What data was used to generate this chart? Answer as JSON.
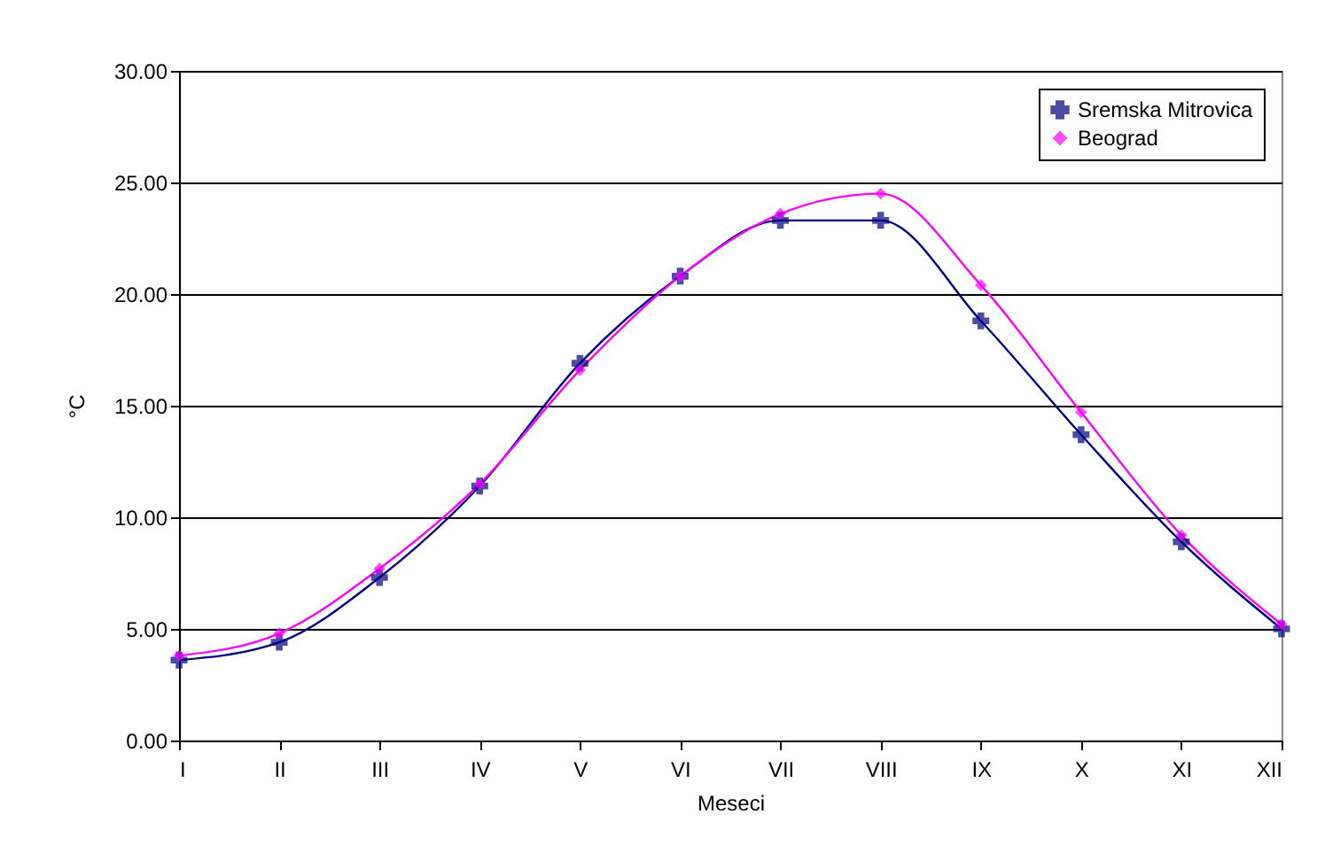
{
  "chart_data": {
    "type": "line",
    "xlabel": "Meseci",
    "ylabel": "°C",
    "categories": [
      "I",
      "II",
      "III",
      "IV",
      "V",
      "VI",
      "VII",
      "VIII",
      "IX",
      "X",
      "XI",
      "XII"
    ],
    "series": [
      {
        "name": "Sremska Mitrovica",
        "color": "#000080",
        "marker": "cross",
        "values": [
          3.6,
          4.4,
          7.3,
          11.4,
          16.9,
          20.8,
          23.3,
          23.3,
          18.8,
          13.7,
          8.9,
          5.0
        ]
      },
      {
        "name": "Beograd",
        "color": "#ff00ff",
        "marker": "diamond",
        "values": [
          3.8,
          4.8,
          7.7,
          11.5,
          16.6,
          20.8,
          23.6,
          24.5,
          20.4,
          14.7,
          9.2,
          5.2
        ]
      }
    ],
    "ylim": [
      0,
      30
    ],
    "yticks": [
      {
        "value": 0,
        "label": "0.00"
      },
      {
        "value": 5,
        "label": "5.00"
      },
      {
        "value": 10,
        "label": "10.00"
      },
      {
        "value": 15,
        "label": "15.00"
      },
      {
        "value": 20,
        "label": "20.00"
      },
      {
        "value": 25,
        "label": "25.00"
      },
      {
        "value": 30,
        "label": "30.00"
      }
    ],
    "grid": "y",
    "legend": "top right",
    "line_style": "solid"
  }
}
